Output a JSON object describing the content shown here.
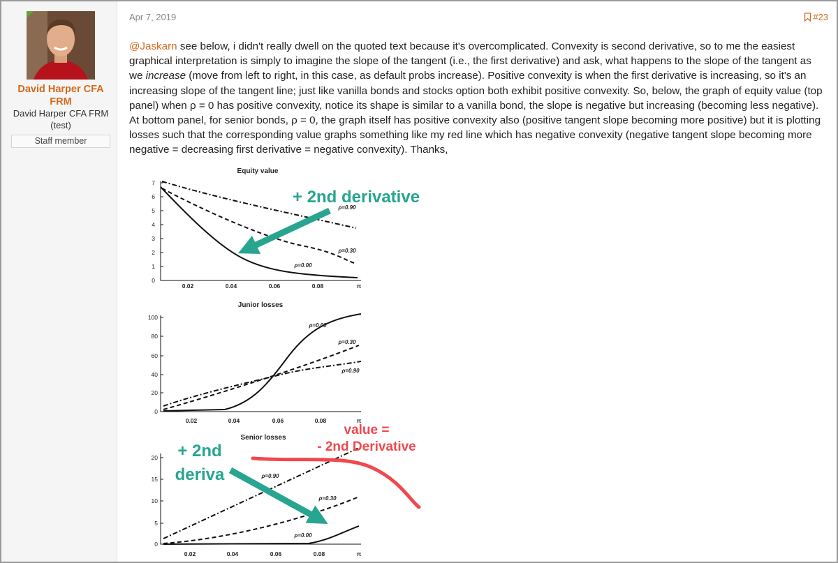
{
  "post": {
    "author": {
      "name": "David Harper CFA FRM",
      "title": "David Harper CFA FRM (test)",
      "badge": "Staff member"
    },
    "date": "Apr 7, 2019",
    "number": "#23",
    "body": {
      "mention": "@Jaskarn",
      "text1": " see below, i didn't really dwell on the quoted text because it's overcomplicated. Convexity is second derivative, so to me the easiest graphical interpretation is simply to imagine the slope of the tangent (i.e., the first derivative) and ask, what happens to the slope of the tangent as we ",
      "emphasis": "increase",
      "text2": " (move from left to right, in this case, as default probs increase). Positive convexity is when the first derivative is increasing, so it's an increasing slope of the tangent line; just like vanilla bonds and stocks option both exhibit positive convexity. So, below, the graph of equity value (top panel) when ρ = 0 has positive convexity, notice its shape is similar to a vanilla bond, the slope is negative but increasing (becoming less negative). At bottom panel, for senior bonds, ρ = 0, the graph itself has positive convexity also (positive tangent slope becoming more positive) but it is plotting losses such that the corresponding value graphs something like my red line which has negative convexity (negative tangent slope becoming more negative = decreasing first derivative = negative convexity). Thanks,"
    },
    "figure": {
      "panels": [
        {
          "title": "Equity value",
          "yticks": [
            "0",
            "1",
            "2",
            "3",
            "4",
            "5",
            "6",
            "7"
          ],
          "xticks": [
            "0.02",
            "0.04",
            "0.06",
            "0.08",
            "π"
          ],
          "curve_labels": [
            "ρ=0.90",
            "ρ=0.30",
            "ρ=0.00"
          ]
        },
        {
          "title": "Junior losses",
          "yticks": [
            "0",
            "20",
            "40",
            "60",
            "80",
            "100"
          ],
          "xticks": [
            "0.02",
            "0.04",
            "0.06",
            "0.08",
            "π"
          ],
          "curve_labels": [
            "ρ=0.00",
            "ρ=0.30",
            "ρ=0.90"
          ]
        },
        {
          "title": "Senior losses",
          "yticks": [
            "0",
            "5",
            "10",
            "15",
            "20"
          ],
          "xticks": [
            "0.02",
            "0.04",
            "0.06",
            "0.08",
            "π"
          ],
          "curve_labels": [
            "ρ=0.90",
            "ρ=0.30",
            "ρ=0.00"
          ]
        }
      ],
      "annotations": [
        "+ 2nd derivative",
        "+ 2nd",
        "deriva",
        "value =",
        "- 2nd Derivative"
      ]
    }
  }
}
